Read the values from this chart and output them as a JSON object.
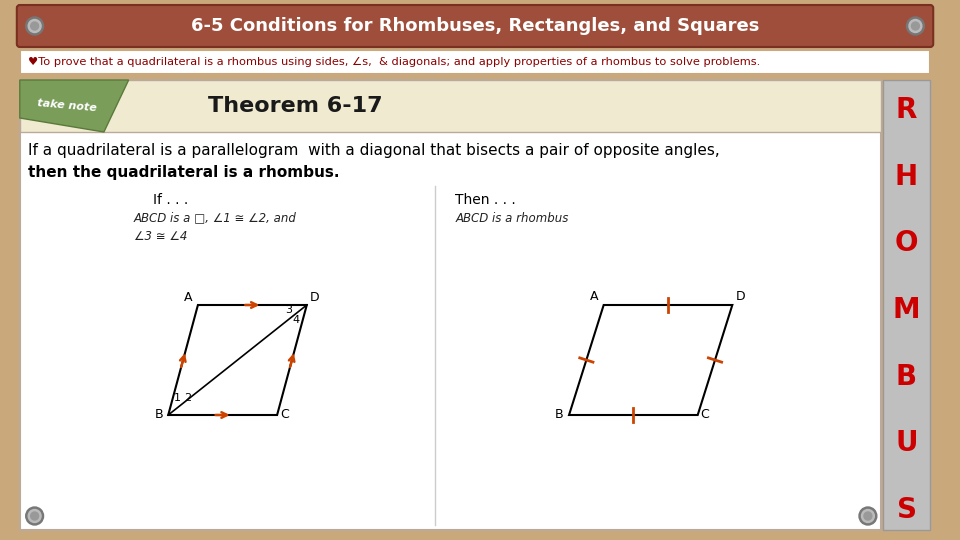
{
  "bg_color": "#c9a87c",
  "title_bar_color": "#9e4e3a",
  "title_text": "6-5 Conditions for Rhombuses, Rectangles, and Squares",
  "title_text_color": "#ffffff",
  "objective_text": "♥To prove that a quadrilateral is a rhombus using sides, ∠s,  & diagonals; and apply properties of a rhombus to solve problems.",
  "objective_text_color": "#8b0000",
  "objective_bg": "#ffffff",
  "objective_border": "#c8a87c",
  "theorem_header": "Theorem 6-17",
  "theorem_header_color": "#1a1a1a",
  "theorem_bg": "#f0ead0",
  "main_bg": "#ffffff",
  "theorem_text_line1": "If a quadrilateral is a parallelogram  with a diagonal that bisects a pair of opposite angles,",
  "theorem_text_line2": "then the quadrilateral is a rhombus.",
  "rhombus_letters": [
    "R",
    "H",
    "O",
    "M",
    "B",
    "U",
    "S"
  ],
  "rhombus_bar_color": "#c0bfbf",
  "rhombus_text_color": "#cc0000",
  "screw_color": "#777777",
  "screw_highlight": "#bbbbbb",
  "note_banner_color": "#7a9e5a",
  "note_banner_text": "take note",
  "if_label": "If . . .",
  "then_label": "Then . . .",
  "if_condition1": "ABCD is a □, ∠1 ≅ ∠2, and",
  "if_condition2": "∠3 ≅ ∠4",
  "then_condition": "ABCD is a rhombus",
  "arrow_color": "#cc4400",
  "tick_color": "#cc4400"
}
